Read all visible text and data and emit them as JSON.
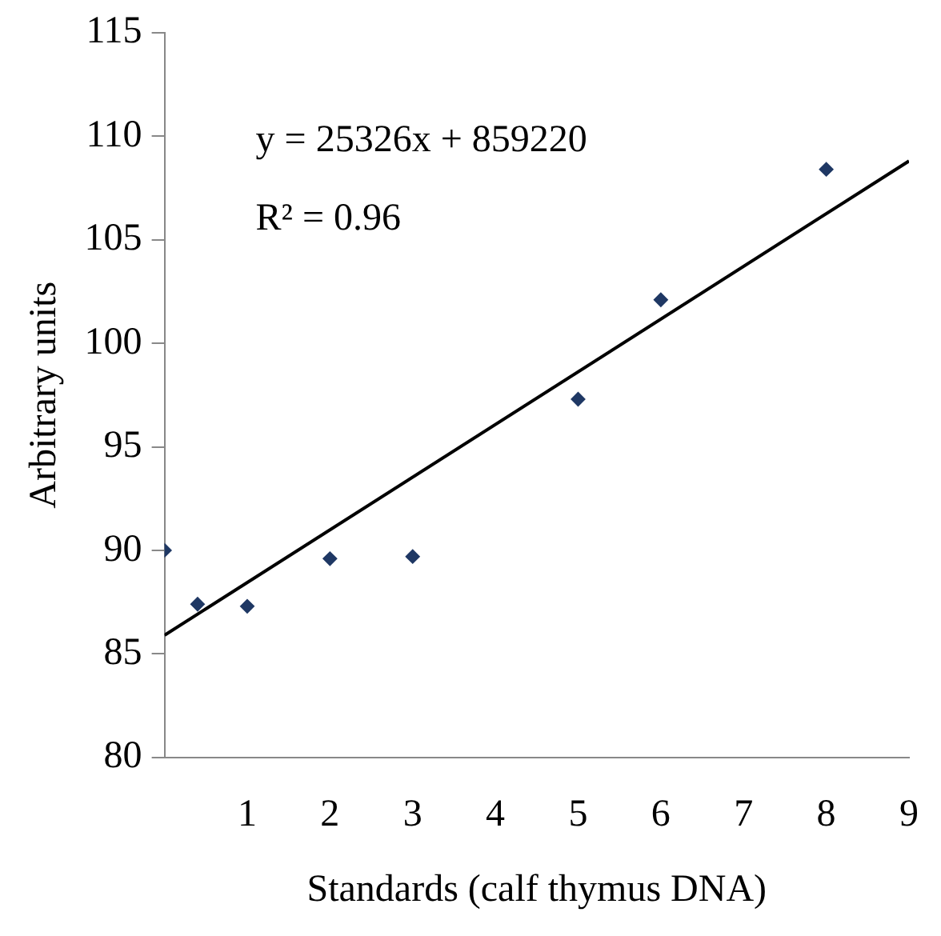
{
  "chart_data": {
    "type": "scatter",
    "xlabel": "Standards (calf thymus DNA)",
    "ylabel": "Arbitrary units",
    "x": [
      0,
      0.4,
      1,
      2,
      3,
      5,
      6,
      8
    ],
    "xlim": [
      0,
      9
    ],
    "xticks": [
      1,
      2,
      3,
      4,
      5,
      6,
      7,
      8,
      9
    ],
    "ylim": [
      80,
      115
    ],
    "yticks": [
      80,
      85,
      90,
      95,
      100,
      105,
      110,
      115
    ],
    "series": [
      {
        "color": "#1f3864",
        "values": [
          90.0,
          87.4,
          87.3,
          89.6,
          89.7,
          97.3,
          102.1,
          108.4
        ]
      },
      {
        "type": "line",
        "marker": "none",
        "color": "#000000",
        "x": [
          0,
          9
        ],
        "values": [
          85.9,
          108.8
        ]
      }
    ],
    "annotations": [
      "y = 25326x + 859220",
      "R² = 0.96"
    ],
    "marker": "diamond",
    "grid": false,
    "legend": false
  }
}
